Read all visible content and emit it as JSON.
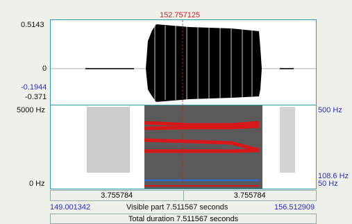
{
  "cursor_time": "152.757125",
  "waveform": {
    "y_max": "0.5143",
    "y_zero": "0",
    "y_mark_blue": "-0.1944",
    "y_min": "-0.371"
  },
  "spectrogram": {
    "freq_top_left": "5000 Hz",
    "freq_bottom_left": "0 Hz",
    "freq_top_right": "500 Hz",
    "freq_mid_right": "108.6 Hz",
    "freq_bottom_right": "50 Hz"
  },
  "time_bar": {
    "left_duration": "3.755784",
    "right_duration": "3.755784",
    "start_time": "149.001342",
    "visible_part": "Visible part 7.511567 seconds",
    "end_time": "156.512909",
    "total_duration": "Total duration 7.511567 seconds"
  },
  "colors": {
    "panel_border": "#2a9aa8",
    "formant": "#d81818",
    "pitch": "#2a6ad0",
    "cursor": "#d02020",
    "blue_text": "#2a2ad0"
  }
}
